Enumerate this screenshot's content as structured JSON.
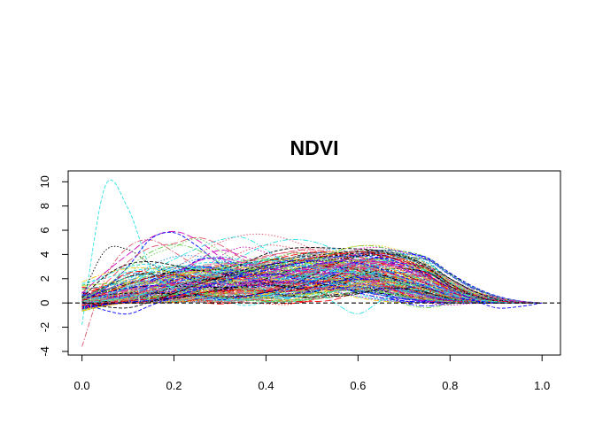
{
  "chart_data": {
    "type": "line",
    "title": "NDVI",
    "xlabel": "",
    "ylabel": "",
    "xlim": [
      -0.03,
      1.04
    ],
    "ylim": [
      -4.3,
      10.9
    ],
    "x_ticks": [
      0.0,
      0.2,
      0.4,
      0.6,
      0.8,
      1.0
    ],
    "x_tick_labels": [
      "0.0",
      "0.2",
      "0.4",
      "0.6",
      "0.8",
      "1.0"
    ],
    "y_ticks": [
      -4,
      -2,
      0,
      2,
      4,
      6,
      8,
      10
    ],
    "y_tick_labels": [
      "-4",
      "-2",
      "0",
      "2",
      "4",
      "6",
      "8",
      "10"
    ],
    "reference_line": {
      "y": 0,
      "style": "dashed",
      "color": "#000000"
    },
    "grid": false,
    "legend": "none",
    "palette": [
      "#000000",
      "#df536b",
      "#61d04f",
      "#2297e6",
      "#28e2e5",
      "#cd0bbc",
      "#f5c710",
      "#9e9e9e",
      "#0000ff",
      "#ff0000"
    ],
    "line_styles": [
      "dashed",
      "dotted",
      "dashdot",
      "longdash"
    ],
    "series_count": 160,
    "x": [
      0,
      0.05,
      0.1,
      0.15,
      0.2,
      0.25,
      0.3,
      0.35,
      0.4,
      0.45,
      0.5,
      0.55,
      0.6,
      0.65,
      0.7,
      0.75,
      0.8,
      0.85,
      0.9,
      0.95,
      1.0
    ],
    "series": [
      {
        "color": "#28e2e5",
        "values": [
          -1.8,
          9.6,
          7.8,
          2.8,
          1.2,
          0.6,
          0.4,
          0.3,
          0.6,
          1.4,
          2.4,
          3.0,
          3.2,
          3.0,
          2.5,
          1.8,
          1.0,
          0.5,
          0.2,
          0.05,
          0
        ]
      },
      {
        "color": "#000000",
        "values": [
          0.5,
          4.3,
          4.4,
          3.2,
          2.4,
          2.0,
          2.1,
          2.5,
          2.9,
          3.2,
          3.4,
          3.6,
          3.9,
          4.1,
          3.9,
          3.0,
          1.6,
          0.7,
          0.2,
          0.05,
          0
        ]
      },
      {
        "color": "#df536b",
        "values": [
          -3.6,
          2.0,
          4.6,
          5.2,
          4.2,
          3.0,
          2.2,
          1.9,
          2.1,
          2.6,
          3.0,
          3.1,
          3.0,
          2.6,
          2.0,
          1.3,
          0.7,
          0.3,
          0.1,
          0.02,
          0
        ]
      },
      {
        "color": "#cd0bbc",
        "values": [
          0.8,
          2.5,
          4.0,
          5.4,
          5.9,
          5.2,
          3.8,
          2.6,
          2.2,
          2.5,
          3.0,
          3.4,
          3.6,
          3.4,
          2.8,
          1.9,
          1.0,
          0.4,
          0.1,
          0.02,
          0
        ]
      },
      {
        "color": "#0000ff",
        "values": [
          0.2,
          1.2,
          3.0,
          5.3,
          5.8,
          4.7,
          3.2,
          2.4,
          2.3,
          2.6,
          3.1,
          3.4,
          3.3,
          2.8,
          2.1,
          1.3,
          0.6,
          0.2,
          0.05,
          0.01,
          0
        ]
      },
      {
        "color": "#61d04f",
        "values": [
          0.1,
          0.9,
          2.3,
          3.9,
          4.6,
          5.3,
          4.3,
          3.1,
          2.5,
          2.6,
          3.0,
          3.3,
          3.5,
          3.6,
          3.2,
          2.2,
          1.1,
          0.4,
          0.1,
          0.02,
          0
        ]
      },
      {
        "color": "#28e2e5",
        "values": [
          0.1,
          0.6,
          1.4,
          2.6,
          3.6,
          4.5,
          5.2,
          5.4,
          4.4,
          3.0,
          1.3,
          0.0,
          -0.9,
          0.2,
          1.0,
          1.0,
          0.6,
          0.3,
          0.1,
          0.02,
          0
        ]
      },
      {
        "color": "#df536b",
        "values": [
          0.3,
          1.6,
          3.4,
          4.6,
          4.9,
          5.4,
          4.8,
          3.6,
          2.7,
          2.4,
          2.6,
          3.0,
          3.4,
          3.3,
          2.7,
          1.7,
          0.8,
          0.3,
          0.08,
          0.02,
          0
        ]
      },
      {
        "color": "#000000",
        "values": [
          0.4,
          2.2,
          3.2,
          3.4,
          3.1,
          2.7,
          2.8,
          3.2,
          3.5,
          3.7,
          3.9,
          4.1,
          4.3,
          4.2,
          3.8,
          2.9,
          1.6,
          0.6,
          0.15,
          0.03,
          0
        ]
      },
      {
        "color": "#2297e6",
        "values": [
          0.0,
          0.5,
          1.3,
          2.2,
          3.0,
          3.6,
          3.8,
          3.5,
          2.9,
          2.3,
          1.8,
          1.6,
          1.5,
          1.3,
          1.0,
          0.6,
          0.3,
          0.1,
          0.03,
          0.01,
          0
        ]
      },
      {
        "color": "#61d04f",
        "values": [
          0.3,
          1.3,
          2.9,
          4.2,
          4.8,
          4.4,
          3.3,
          2.4,
          2.1,
          2.6,
          3.4,
          4.2,
          4.7,
          4.6,
          3.9,
          2.6,
          1.3,
          0.5,
          0.12,
          0.02,
          0
        ]
      },
      {
        "color": "#9e9e9e",
        "values": [
          0.1,
          0.3,
          0.6,
          1.0,
          1.4,
          1.9,
          2.4,
          2.9,
          3.3,
          3.7,
          4.0,
          4.2,
          4.3,
          4.2,
          3.8,
          3.0,
          1.9,
          0.9,
          0.3,
          0.05,
          0
        ]
      },
      {
        "color": "#000000",
        "values": [
          0.1,
          -0.3,
          -0.4,
          0.1,
          0.8,
          1.5,
          2.1,
          2.7,
          3.1,
          3.4,
          3.7,
          3.9,
          4.1,
          4.1,
          3.8,
          3.1,
          2.0,
          1.0,
          0.3,
          0.05,
          0
        ]
      },
      {
        "color": "#f5c710",
        "values": [
          0.0,
          0.4,
          1.0,
          1.7,
          2.3,
          2.6,
          2.8,
          2.9,
          3.0,
          3.3,
          3.8,
          4.3,
          4.7,
          4.7,
          4.2,
          3.2,
          1.8,
          0.8,
          0.2,
          0.04,
          0
        ]
      },
      {
        "color": "#ff0000",
        "values": [
          0.2,
          0.8,
          1.5,
          2.1,
          2.3,
          2.2,
          2.0,
          2.1,
          2.6,
          3.2,
          3.7,
          4.0,
          4.2,
          4.1,
          3.6,
          2.8,
          1.6,
          0.7,
          0.2,
          0.04,
          0
        ]
      },
      {
        "color": "#28e2e5",
        "values": [
          0.0,
          0.2,
          0.5,
          0.9,
          1.4,
          2.0,
          2.6,
          3.2,
          3.5,
          3.3,
          2.9,
          2.6,
          2.5,
          2.4,
          2.0,
          1.4,
          0.8,
          0.3,
          0.08,
          0.01,
          0
        ]
      },
      {
        "color": "#0000ff",
        "values": [
          0.0,
          -0.6,
          -0.9,
          -0.2,
          0.5,
          1.1,
          1.7,
          2.2,
          2.7,
          3.1,
          3.5,
          3.8,
          3.9,
          3.7,
          3.2,
          2.3,
          1.2,
          0.3,
          -0.4,
          -0.3,
          0
        ]
      },
      {
        "color": "#cd0bbc",
        "values": [
          0.0,
          0.3,
          0.7,
          1.0,
          1.2,
          1.3,
          1.4,
          1.6,
          1.9,
          2.3,
          2.7,
          3.0,
          3.2,
          3.1,
          2.7,
          2.1,
          1.3,
          0.6,
          0.2,
          0.03,
          0
        ]
      }
    ]
  }
}
